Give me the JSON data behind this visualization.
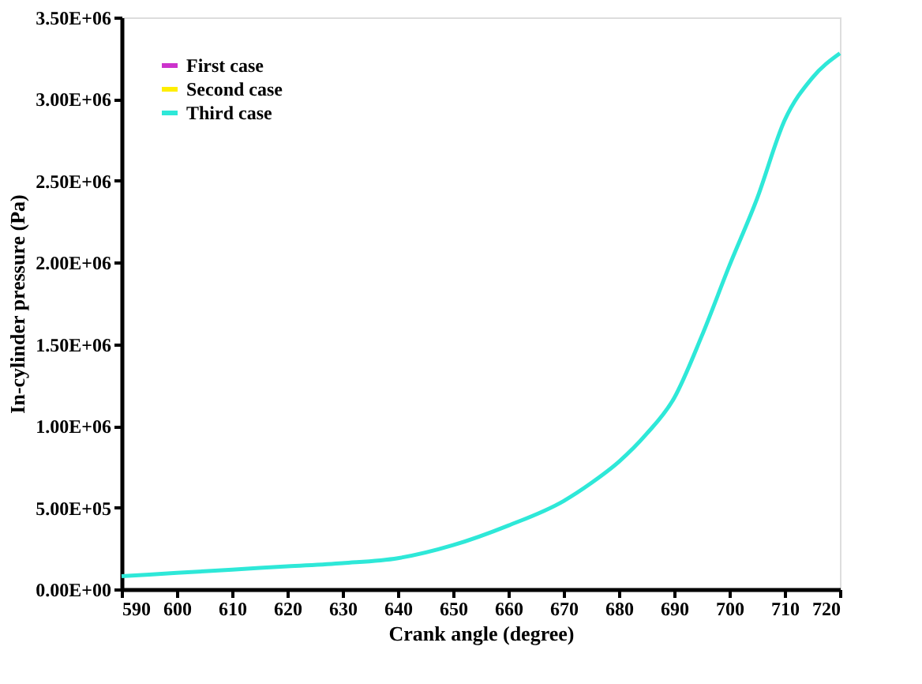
{
  "chart_data": {
    "type": "line",
    "xlabel": "Crank angle (degree)",
    "ylabel": "In-cylinder pressure (Pa)",
    "x": [
      590,
      600,
      610,
      620,
      630,
      640,
      650,
      660,
      670,
      675,
      680,
      685,
      690,
      695,
      700,
      705,
      710,
      715,
      720
    ],
    "series": [
      {
        "name": "First case",
        "color": "#cc33cc",
        "values": [
          null,
          null,
          null,
          null,
          null,
          null,
          null,
          null,
          null,
          null,
          null,
          null,
          null,
          null,
          null,
          null,
          null,
          null,
          null
        ]
      },
      {
        "name": "Second case",
        "color": "#ffee00",
        "values": [
          null,
          null,
          null,
          null,
          null,
          null,
          null,
          null,
          null,
          null,
          null,
          null,
          null,
          null,
          null,
          null,
          null,
          null,
          null
        ]
      },
      {
        "name": "Third case",
        "color": "#2ee8d8",
        "values": [
          80000,
          100000,
          120000,
          140000,
          160000,
          190000,
          270000,
          390000,
          540000,
          650000,
          780000,
          950000,
          1170000,
          1550000,
          1980000,
          2390000,
          2870000,
          3130000,
          3280000
        ]
      }
    ],
    "xlim": [
      590,
      720
    ],
    "xticks": [
      590,
      600,
      610,
      620,
      630,
      640,
      650,
      660,
      670,
      680,
      690,
      700,
      710,
      720
    ],
    "ylim": [
      0,
      3500000
    ],
    "yticks": [
      {
        "value": 0,
        "label": "0.00E+00"
      },
      {
        "value": 500000,
        "label": "5.00E+05"
      },
      {
        "value": 1000000,
        "label": "1.00E+06"
      },
      {
        "value": 1500000,
        "label": "1.50E+06"
      },
      {
        "value": 2000000,
        "label": "2.00E+06"
      },
      {
        "value": 2500000,
        "label": "2.50E+06"
      },
      {
        "value": 3000000,
        "label": "3.00E+06"
      },
      {
        "value": 3500000,
        "label": "3.50E+06"
      }
    ],
    "grid": false,
    "legend": "top left",
    "marker": "none",
    "line_style": "solid"
  }
}
